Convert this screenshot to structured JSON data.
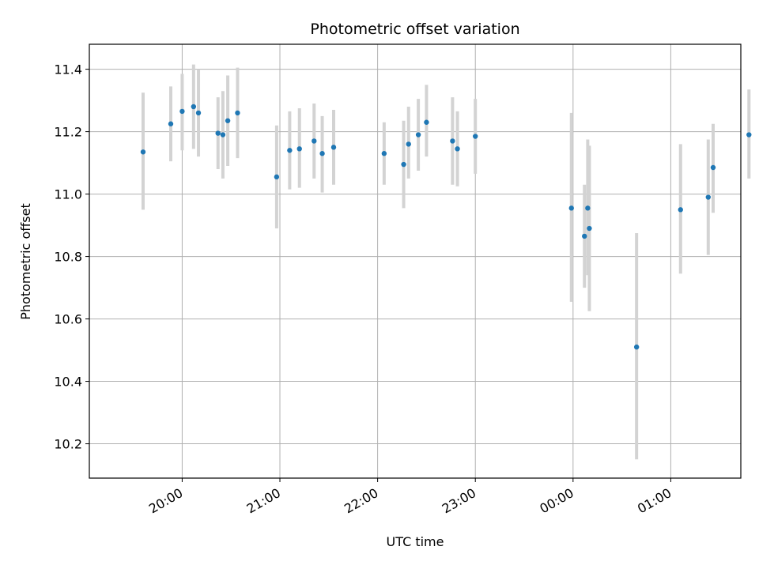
{
  "chart_data": {
    "type": "scatter",
    "title": "Photometric offset variation",
    "xlabel": "UTC time",
    "ylabel": "Photometric offset",
    "x_axis_type": "time",
    "x_start": "19:00",
    "x_end": "01:40",
    "xlim": [
      "19:03",
      "01:43"
    ],
    "ylim": [
      10.09,
      11.48
    ],
    "xticks": [
      "20:00",
      "21:00",
      "22:00",
      "23:00",
      "00:00",
      "01:00"
    ],
    "yticks": [
      10.2,
      10.4,
      10.6,
      10.8,
      11.0,
      11.2,
      11.4
    ],
    "grid": true,
    "colors": {
      "point": "#1f77b4",
      "errorbar": "#d3d3d3",
      "grid": "#b0b0b0"
    },
    "points": [
      {
        "x": "19:36",
        "y": 11.135,
        "lo": 10.95,
        "hi": 11.325
      },
      {
        "x": "19:53",
        "y": 11.225,
        "lo": 11.105,
        "hi": 11.345
      },
      {
        "x": "20:00",
        "y": 11.265,
        "lo": 11.14,
        "hi": 11.385
      },
      {
        "x": "20:07",
        "y": 11.28,
        "lo": 11.145,
        "hi": 11.415
      },
      {
        "x": "20:10",
        "y": 11.26,
        "lo": 11.12,
        "hi": 11.4
      },
      {
        "x": "20:22",
        "y": 11.195,
        "lo": 11.08,
        "hi": 11.31
      },
      {
        "x": "20:25",
        "y": 11.19,
        "lo": 11.05,
        "hi": 11.33
      },
      {
        "x": "20:28",
        "y": 11.235,
        "lo": 11.09,
        "hi": 11.38
      },
      {
        "x": "20:34",
        "y": 11.26,
        "lo": 11.115,
        "hi": 11.405
      },
      {
        "x": "20:58",
        "y": 11.055,
        "lo": 10.89,
        "hi": 11.22
      },
      {
        "x": "21:06",
        "y": 11.14,
        "lo": 11.015,
        "hi": 11.265
      },
      {
        "x": "21:12",
        "y": 11.145,
        "lo": 11.02,
        "hi": 11.275
      },
      {
        "x": "21:21",
        "y": 11.17,
        "lo": 11.05,
        "hi": 11.29
      },
      {
        "x": "21:26",
        "y": 11.13,
        "lo": 11.005,
        "hi": 11.25
      },
      {
        "x": "21:33",
        "y": 11.15,
        "lo": 11.03,
        "hi": 11.27
      },
      {
        "x": "22:04",
        "y": 11.13,
        "lo": 11.03,
        "hi": 11.23
      },
      {
        "x": "22:16",
        "y": 11.095,
        "lo": 10.955,
        "hi": 11.235
      },
      {
        "x": "22:19",
        "y": 11.16,
        "lo": 11.05,
        "hi": 11.28
      },
      {
        "x": "22:25",
        "y": 11.19,
        "lo": 11.075,
        "hi": 11.305
      },
      {
        "x": "22:30",
        "y": 11.23,
        "lo": 11.12,
        "hi": 11.35
      },
      {
        "x": "22:46",
        "y": 11.17,
        "lo": 11.03,
        "hi": 11.31
      },
      {
        "x": "22:49",
        "y": 11.145,
        "lo": 11.025,
        "hi": 11.265
      },
      {
        "x": "23:00",
        "y": 11.185,
        "lo": 11.065,
        "hi": 11.305
      },
      {
        "x": "23:59",
        "y": 10.955,
        "lo": 10.655,
        "hi": 11.26
      },
      {
        "x": "00:07",
        "y": 10.865,
        "lo": 10.7,
        "hi": 11.03
      },
      {
        "x": "00:09",
        "y": 10.955,
        "lo": 10.74,
        "hi": 11.175
      },
      {
        "x": "00:10",
        "y": 10.89,
        "lo": 10.625,
        "hi": 11.155
      },
      {
        "x": "00:39",
        "y": 10.51,
        "lo": 10.15,
        "hi": 10.875
      },
      {
        "x": "01:06",
        "y": 10.95,
        "lo": 10.745,
        "hi": 11.16
      },
      {
        "x": "01:23",
        "y": 10.99,
        "lo": 10.805,
        "hi": 11.175
      },
      {
        "x": "01:26",
        "y": 11.085,
        "lo": 10.94,
        "hi": 11.225
      },
      {
        "x": "01:48",
        "y": 11.19,
        "lo": 11.05,
        "hi": 11.335
      }
    ]
  }
}
